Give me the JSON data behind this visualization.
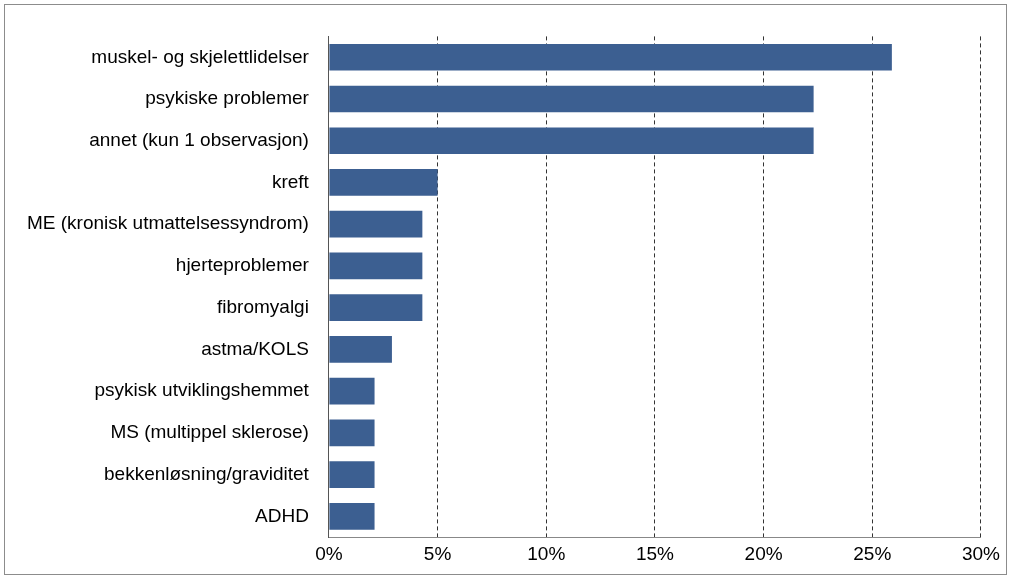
{
  "chart_data": {
    "type": "bar",
    "orientation": "horizontal",
    "categories": [
      "muskel- og skjelettlidelser",
      "psykiske problemer",
      "annet (kun 1 observasjon)",
      "kreft",
      "ME (kronisk utmattelsessyndrom)",
      "hjerteproblemer",
      "fibromyalgi",
      "astma/KOLS",
      "psykisk utviklingshemmet",
      "MS (multippel sklerose)",
      "bekkenløsning/graviditet",
      "ADHD"
    ],
    "values": [
      25.9,
      22.3,
      22.3,
      5.0,
      4.3,
      4.3,
      4.3,
      2.9,
      2.1,
      2.1,
      2.1,
      2.1
    ],
    "color": "#3c5f91",
    "xlim": [
      0,
      30
    ],
    "xticks": [
      {
        "value": 0,
        "label": "0%"
      },
      {
        "value": 5,
        "label": "5%"
      },
      {
        "value": 10,
        "label": "10%"
      },
      {
        "value": 15,
        "label": "15%"
      },
      {
        "value": 20,
        "label": "20%"
      },
      {
        "value": 25,
        "label": "25%"
      },
      {
        "value": 30,
        "label": "30%"
      }
    ],
    "grid": "x",
    "legend": false
  }
}
